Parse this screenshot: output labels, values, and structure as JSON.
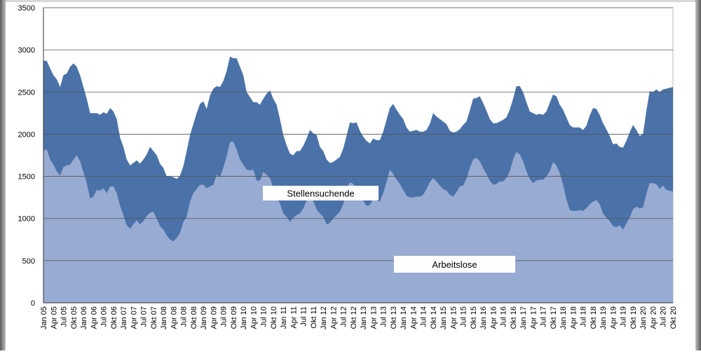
{
  "chart_data": {
    "type": "area",
    "categories": [
      "Jan 05",
      null,
      null,
      "Apr 05",
      null,
      null,
      "Jul 05",
      null,
      null,
      "Okt 05",
      null,
      null,
      "Jan 06",
      null,
      null,
      "Apr 06",
      null,
      null,
      "Jul 06",
      null,
      null,
      "Okt 06",
      null,
      null,
      "Jan 07",
      null,
      null,
      "Apr 07",
      null,
      null,
      "Jul 07",
      null,
      null,
      "Okt 07",
      null,
      null,
      "Jan 08",
      null,
      null,
      "Apr 08",
      null,
      null,
      "Jul 08",
      null,
      null,
      "Okt 08",
      null,
      null,
      "Jan 09",
      null,
      null,
      "Apr 09",
      null,
      null,
      "Jul 09",
      null,
      null,
      "Okt 09",
      null,
      null,
      "Jan 10",
      null,
      null,
      "Apr 10",
      null,
      null,
      "Jul 10",
      null,
      null,
      "Okt 10",
      null,
      null,
      "Jan 11",
      null,
      null,
      "Apr 11",
      null,
      null,
      "Jul 11",
      null,
      null,
      "Okt 11",
      null,
      null,
      "Jan 12",
      null,
      null,
      "Apr 12",
      null,
      null,
      "Jul 12",
      null,
      null,
      "Okt 12",
      null,
      null,
      "Jan 13",
      null,
      null,
      "Apr 13",
      null,
      null,
      "Jul 13",
      null,
      null,
      "Okt 13",
      null,
      null,
      "Jan 14",
      null,
      null,
      "Apr 14",
      null,
      null,
      "Jul 14",
      null,
      null,
      "Okt 14",
      null,
      null,
      "Jan 15",
      null,
      null,
      "Apr 15",
      null,
      null,
      "Jul 15",
      null,
      null,
      "Okt 15",
      null,
      null,
      "Jan 16",
      null,
      null,
      "Apr 16",
      null,
      null,
      "Jul 16",
      null,
      null,
      "Okt 16",
      null,
      null,
      "Jan 17",
      null,
      null,
      "Apr 17",
      null,
      null,
      "Jul 17",
      null,
      null,
      "Okt 17",
      null,
      null,
      "Jan 18",
      null,
      null,
      "Apr 18",
      null,
      null,
      "Jul 18",
      null,
      null,
      "Okt 18",
      null,
      null,
      "Jan 19",
      null,
      null,
      "Apr 19",
      null,
      null,
      "Jul 19",
      null,
      null,
      "Okt 19",
      null,
      null,
      "Jan 20",
      null,
      null,
      "Apr 20",
      null,
      null,
      "Jul 20",
      null,
      null,
      "Okt 20"
    ],
    "series": [
      {
        "name": "Stellensuchende",
        "color": "#4a72a8",
        "values": [
          2870,
          2870,
          2780,
          2700,
          2650,
          2560,
          2700,
          2720,
          2800,
          2840,
          2800,
          2700,
          2560,
          2420,
          2250,
          2250,
          2250,
          2230,
          2260,
          2240,
          2310,
          2270,
          2180,
          1960,
          1850,
          1700,
          1630,
          1660,
          1690,
          1650,
          1700,
          1760,
          1850,
          1800,
          1750,
          1650,
          1600,
          1500,
          1500,
          1490,
          1470,
          1510,
          1620,
          1800,
          1990,
          2120,
          2250,
          2360,
          2390,
          2300,
          2460,
          2540,
          2570,
          2560,
          2630,
          2750,
          2920,
          2900,
          2900,
          2800,
          2700,
          2500,
          2440,
          2380,
          2380,
          2350,
          2420,
          2480,
          2520,
          2420,
          2350,
          2180,
          1990,
          1870,
          1770,
          1750,
          1800,
          1800,
          1860,
          1950,
          2050,
          2010,
          1990,
          1850,
          1800,
          1700,
          1660,
          1670,
          1700,
          1730,
          1830,
          1980,
          2140,
          2130,
          2140,
          2040,
          1970,
          1920,
          1890,
          1950,
          1930,
          1930,
          2030,
          2170,
          2310,
          2360,
          2290,
          2230,
          2180,
          2080,
          2030,
          2040,
          2050,
          2030,
          2030,
          2050,
          2120,
          2250,
          2210,
          2180,
          2150,
          2120,
          2040,
          2020,
          2030,
          2060,
          2110,
          2150,
          2280,
          2420,
          2430,
          2450,
          2370,
          2280,
          2180,
          2130,
          2130,
          2150,
          2170,
          2200,
          2290,
          2420,
          2570,
          2570,
          2500,
          2380,
          2270,
          2250,
          2230,
          2240,
          2230,
          2270,
          2370,
          2470,
          2450,
          2350,
          2290,
          2200,
          2110,
          2080,
          2080,
          2080,
          2050,
          2100,
          2220,
          2310,
          2300,
          2230,
          2130,
          2060,
          1980,
          1880,
          1890,
          1850,
          1840,
          1920,
          2020,
          2110,
          2050,
          1980,
          2000,
          2270,
          2510,
          2500,
          2530,
          2500,
          2530,
          2540,
          2550,
          2560
        ]
      },
      {
        "name": "Arbeitslose",
        "color": "#98abd2",
        "values": [
          1810,
          1820,
          1700,
          1640,
          1560,
          1510,
          1610,
          1630,
          1640,
          1700,
          1750,
          1680,
          1550,
          1420,
          1240,
          1260,
          1340,
          1330,
          1360,
          1300,
          1380,
          1380,
          1300,
          1150,
          1040,
          920,
          880,
          930,
          980,
          930,
          970,
          1030,
          1070,
          1080,
          1000,
          910,
          870,
          800,
          750,
          730,
          770,
          830,
          960,
          1020,
          1200,
          1300,
          1350,
          1400,
          1400,
          1360,
          1380,
          1400,
          1520,
          1490,
          1600,
          1740,
          1910,
          1910,
          1820,
          1700,
          1640,
          1580,
          1570,
          1580,
          1450,
          1450,
          1550,
          1520,
          1480,
          1360,
          1250,
          1180,
          1060,
          1020,
          960,
          1010,
          1040,
          1060,
          1120,
          1210,
          1260,
          1210,
          1110,
          1060,
          1020,
          930,
          950,
          1000,
          1040,
          1080,
          1170,
          1350,
          1430,
          1410,
          1350,
          1260,
          1210,
          1150,
          1160,
          1230,
          1210,
          1200,
          1300,
          1430,
          1580,
          1530,
          1460,
          1410,
          1340,
          1270,
          1250,
          1250,
          1260,
          1260,
          1280,
          1350,
          1430,
          1480,
          1440,
          1390,
          1350,
          1330,
          1280,
          1260,
          1310,
          1380,
          1390,
          1470,
          1600,
          1700,
          1720,
          1680,
          1600,
          1530,
          1450,
          1400,
          1410,
          1440,
          1440,
          1480,
          1560,
          1700,
          1790,
          1760,
          1680,
          1560,
          1470,
          1420,
          1450,
          1460,
          1460,
          1500,
          1560,
          1670,
          1630,
          1540,
          1400,
          1230,
          1100,
          1090,
          1090,
          1100,
          1090,
          1120,
          1170,
          1200,
          1220,
          1170,
          1060,
          1010,
          970,
          910,
          900,
          920,
          870,
          940,
          1010,
          1110,
          1140,
          1120,
          1130,
          1290,
          1420,
          1420,
          1410,
          1350,
          1390,
          1340,
          1330,
          1320
        ]
      }
    ],
    "ylim": [
      0,
      3500
    ],
    "yticks": [
      0,
      500,
      1000,
      1500,
      2000,
      2500,
      3000,
      3500
    ],
    "grid": true
  }
}
